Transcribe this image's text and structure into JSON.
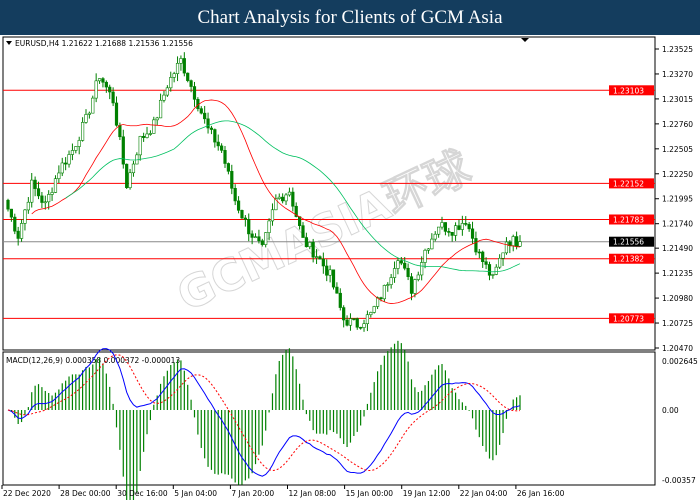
{
  "header": {
    "title": "Chart Analysis for Clients of GCM Asia"
  },
  "watermark": "GCMASIA环球 GLOBAL CAPITAL MARKETS",
  "chart_data": [
    {
      "type": "candlestick",
      "legend_text": "EURUSD,H4  1.21622 1.21688 1.21536 1.21556",
      "symbol": "EURUSD",
      "timeframe": "H4",
      "ohlc_last": [
        1.21622,
        1.21688,
        1.21536,
        1.21556
      ],
      "current_price": "1.21556",
      "ylim": [
        1.2042,
        1.2365
      ],
      "y_ticks": [
        "1.23525",
        "1.23270",
        "1.23015",
        "1.22760",
        "1.22505",
        "1.22250",
        "1.21995",
        "1.21740",
        "1.21490",
        "1.21235",
        "1.20980",
        "1.20725",
        "1.20470"
      ],
      "x_ticks": [
        "22 Dec 2020",
        "28 Dec 00:00",
        "30 Dec 16:00",
        "5 Jan 04:00",
        "7 Jan 20:00",
        "12 Jan 08:00",
        "15 Jan 00:00",
        "19 Jan 12:00",
        "22 Jan 04:00",
        "26 Jan 16:00"
      ],
      "closes": [
        1.2198,
        1.2162,
        1.2214,
        1.2193,
        1.2229,
        1.2249,
        1.228,
        1.2326,
        1.23,
        1.2214,
        1.226,
        1.2275,
        1.2316,
        1.2341,
        1.2306,
        1.227,
        1.2249,
        1.2198,
        1.2168,
        1.2147,
        1.2198,
        1.2208,
        1.2157,
        1.2142,
        1.2121,
        1.2076,
        1.2071,
        1.2081,
        1.2107,
        1.2142,
        1.2107,
        1.2147,
        1.2173,
        1.2168,
        1.2178,
        1.2142,
        1.2117,
        1.2157,
        1.21556
      ],
      "levels": [
        "1.23103",
        "1.22152",
        "1.21783",
        "1.21382",
        "1.20773"
      ],
      "colors": {
        "level": "#ff0000",
        "candle": "#008000",
        "ma_fast": "#ff0000",
        "ma_slow": "#00c060",
        "current": "#000000"
      }
    },
    {
      "type": "macd",
      "label": "MACD(12,26,9) 0.000358 0.000372 -0.000013",
      "y_ticks": [
        "0.002645",
        "0.00",
        "-0.00357"
      ],
      "ylim": [
        -0.00357,
        0.002645
      ],
      "colors": {
        "macd": "#0000ff",
        "signal": "#ff0000",
        "histogram": "#008000"
      }
    }
  ]
}
